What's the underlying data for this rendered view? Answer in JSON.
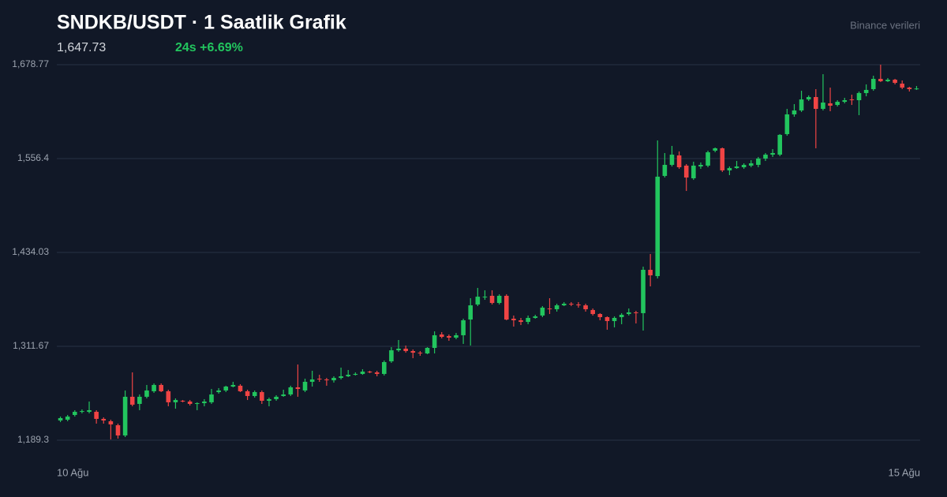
{
  "chart_data": {
    "type": "candlestick",
    "title": "SNDKB/USDT · 1 Saatlik Grafik",
    "last_price": "1,647.73",
    "change": "24s +6.69%",
    "source": "Binance verileri",
    "up_color": "#22c55e",
    "down_color": "#ef4444",
    "grid": true,
    "ylim": [
      1189.3,
      1678.77
    ],
    "yticks": [
      {
        "value": 1189.3,
        "label": "1,189.3"
      },
      {
        "value": 1311.67,
        "label": "1,311.67"
      },
      {
        "value": 1434.03,
        "label": "1,434.03"
      },
      {
        "value": 1556.4,
        "label": "1,556.4"
      },
      {
        "value": 1678.77,
        "label": "1,678.77"
      }
    ],
    "categories": [
      "10 Ağu",
      null,
      null,
      null,
      null,
      null,
      null,
      null,
      null,
      null,
      null,
      null,
      null,
      null,
      null,
      null,
      null,
      null,
      null,
      null,
      null,
      null,
      null,
      null,
      null,
      null,
      null,
      null,
      null,
      null,
      null,
      null,
      null,
      null,
      null,
      null,
      null,
      null,
      null,
      null,
      null,
      null,
      null,
      null,
      null,
      null,
      null,
      null,
      null,
      null,
      null,
      null,
      null,
      null,
      null,
      null,
      null,
      null,
      null,
      null,
      null,
      null,
      null,
      null,
      null,
      null,
      null,
      null,
      null,
      null,
      null,
      null,
      null,
      null,
      null,
      null,
      null,
      null,
      null,
      null,
      null,
      null,
      null,
      null,
      null,
      null,
      null,
      null,
      null,
      null,
      null,
      null,
      null,
      null,
      null,
      null,
      null,
      null,
      null,
      null,
      null,
      null,
      null,
      null,
      null,
      null,
      null,
      null,
      null,
      null,
      null,
      null,
      null,
      null,
      null,
      null,
      null,
      null,
      null,
      "15 Ağu"
    ],
    "open": [
      1215.0,
      1216.0,
      1222.2,
      1226.3,
      1226.3,
      1226.3,
      1217.1,
      1214.0,
      1208.8,
      1195.5,
      1245.9,
      1236.6,
      1245.9,
      1253.1,
      1261.3,
      1253.1,
      1238.7,
      1240.7,
      1239.7,
      1236.6,
      1237.6,
      1238.7,
      1252.0,
      1254.1,
      1259.2,
      1260.3,
      1253.1,
      1246.9,
      1252.0,
      1240.7,
      1242.8,
      1246.9,
      1248.9,
      1258.2,
      1254.1,
      1265.4,
      1269.5,
      1268.5,
      1267.4,
      1270.5,
      1272.6,
      1274.6,
      1275.7,
      1278.7,
      1277.7,
      1275.7,
      1292.1,
      1306.5,
      1308.6,
      1305.5,
      1303.4,
      1302.4,
      1309.6,
      1327.1,
      1325.0,
      1323.0,
      1326.1,
      1346.6,
      1366.2,
      1375.4,
      1377.5,
      1368.2,
      1377.5,
      1347.7,
      1345.6,
      1343.5,
      1348.7,
      1351.8,
      1361.0,
      1360.0,
      1365.1,
      1367.2,
      1366.2,
      1365.1,
      1359.0,
      1353.8,
      1349.7,
      1344.6,
      1349.7,
      1353.8,
      1355.9,
      1354.9,
      1411.4,
      1403.2,
      1533.8,
      1548.2,
      1560.5,
      1547.2,
      1530.7,
      1546.1,
      1547.2,
      1566.7,
      1569.8,
      1541.0,
      1544.0,
      1545.1,
      1547.2,
      1548.2,
      1556.4,
      1561.5,
      1561.5,
      1588.3,
      1614.0,
      1619.1,
      1633.5,
      1636.6,
      1621.2,
      1628.4,
      1626.3,
      1630.4,
      1633.5,
      1632.5,
      1641.8,
      1646.9,
      1660.3,
      1657.2,
      1659.2,
      1654.1,
      1648.9,
      1646.9
    ],
    "high": [
      1220.1,
      1222.2,
      1228.4,
      1229.4,
      1239.7,
      1228.4,
      1219.1,
      1216.0,
      1210.9,
      1254.1,
      1277.7,
      1248.9,
      1261.3,
      1263.3,
      1263.3,
      1255.1,
      1243.8,
      1241.7,
      1241.7,
      1238.7,
      1242.8,
      1256.1,
      1257.2,
      1260.3,
      1265.4,
      1262.3,
      1255.1,
      1254.1,
      1254.1,
      1244.8,
      1247.9,
      1255.1,
      1260.3,
      1288.0,
      1269.5,
      1279.8,
      1274.6,
      1270.5,
      1272.6,
      1283.9,
      1280.8,
      1277.7,
      1281.8,
      1279.8,
      1279.8,
      1293.2,
      1310.6,
      1319.9,
      1312.7,
      1307.6,
      1305.5,
      1310.6,
      1331.2,
      1330.2,
      1327.1,
      1329.1,
      1347.7,
      1374.4,
      1387.8,
      1384.7,
      1384.7,
      1379.5,
      1379.5,
      1351.8,
      1348.7,
      1351.8,
      1352.8,
      1364.1,
      1374.4,
      1367.2,
      1369.3,
      1369.3,
      1369.3,
      1367.2,
      1361.0,
      1354.9,
      1350.7,
      1350.7,
      1354.9,
      1361.0,
      1357.9,
      1415.5,
      1432.0,
      1580.1,
      1563.6,
      1572.9,
      1565.7,
      1549.2,
      1552.3,
      1551.3,
      1566.7,
      1570.8,
      1570.8,
      1546.1,
      1553.3,
      1550.2,
      1554.3,
      1558.5,
      1563.6,
      1568.7,
      1588.3,
      1621.2,
      1627.4,
      1644.8,
      1638.7,
      1646.9,
      1666.4,
      1648.9,
      1632.5,
      1635.6,
      1639.7,
      1643.8,
      1653.1,
      1664.4,
      1678.8,
      1661.3,
      1660.3,
      1658.2,
      1650.0,
      1651.0
    ],
    "low": [
      1212.9,
      1214.0,
      1220.1,
      1224.3,
      1224.3,
      1210.9,
      1210.9,
      1190.3,
      1191.4,
      1193.4,
      1233.5,
      1228.4,
      1243.8,
      1251.0,
      1252.0,
      1233.5,
      1230.4,
      1238.7,
      1234.5,
      1228.4,
      1233.5,
      1236.6,
      1250.0,
      1252.0,
      1258.2,
      1252.0,
      1241.7,
      1244.8,
      1236.6,
      1233.5,
      1240.7,
      1245.9,
      1246.9,
      1245.9,
      1252.0,
      1259.2,
      1265.4,
      1260.3,
      1264.4,
      1268.5,
      1271.6,
      1273.6,
      1274.6,
      1276.7,
      1272.6,
      1273.6,
      1290.1,
      1304.5,
      1303.4,
      1296.2,
      1299.3,
      1301.4,
      1302.4,
      1322.0,
      1318.9,
      1320.9,
      1314.8,
      1312.7,
      1364.1,
      1372.3,
      1366.2,
      1366.2,
      1345.6,
      1337.4,
      1339.4,
      1340.5,
      1347.7,
      1349.7,
      1353.8,
      1356.9,
      1364.1,
      1364.1,
      1362.1,
      1356.9,
      1351.8,
      1345.6,
      1333.3,
      1336.4,
      1340.5,
      1351.8,
      1341.5,
      1332.2,
      1389.8,
      1400.1,
      1531.7,
      1546.1,
      1543.0,
      1514.2,
      1528.6,
      1543.0,
      1545.1,
      1564.6,
      1538.9,
      1534.8,
      1543.0,
      1543.0,
      1545.1,
      1545.1,
      1553.3,
      1558.5,
      1559.5,
      1586.2,
      1610.9,
      1617.1,
      1631.5,
      1569.8,
      1619.1,
      1618.1,
      1624.3,
      1628.4,
      1626.3,
      1613.0,
      1637.6,
      1644.8,
      1656.2,
      1656.2,
      1653.1,
      1646.9,
      1643.8,
      1645.9
    ],
    "close": [
      1218.1,
      1220.1,
      1226.3,
      1227.3,
      1228.4,
      1217.1,
      1215.0,
      1209.9,
      1195.5,
      1245.9,
      1235.6,
      1245.9,
      1254.1,
      1261.3,
      1253.1,
      1238.7,
      1241.7,
      1239.7,
      1236.6,
      1237.6,
      1239.7,
      1248.9,
      1254.1,
      1259.2,
      1261.3,
      1253.1,
      1246.9,
      1252.0,
      1240.7,
      1242.8,
      1245.9,
      1248.9,
      1258.2,
      1256.1,
      1265.4,
      1268.5,
      1268.5,
      1267.4,
      1270.5,
      1272.6,
      1274.6,
      1275.7,
      1278.7,
      1277.7,
      1275.7,
      1291.1,
      1306.5,
      1308.6,
      1305.5,
      1303.4,
      1302.4,
      1309.6,
      1326.1,
      1324.0,
      1323.0,
      1326.1,
      1345.6,
      1365.1,
      1376.4,
      1376.4,
      1368.2,
      1377.5,
      1346.6,
      1345.6,
      1343.5,
      1348.7,
      1350.7,
      1362.1,
      1360.0,
      1365.1,
      1367.2,
      1366.2,
      1365.1,
      1360.0,
      1353.8,
      1349.7,
      1344.6,
      1348.7,
      1352.8,
      1355.9,
      1354.9,
      1411.4,
      1404.2,
      1532.8,
      1548.2,
      1561.5,
      1545.1,
      1531.7,
      1547.2,
      1548.2,
      1564.6,
      1569.8,
      1541.0,
      1544.0,
      1546.1,
      1548.2,
      1550.2,
      1556.4,
      1561.5,
      1563.6,
      1587.3,
      1614.0,
      1619.1,
      1633.5,
      1636.6,
      1621.2,
      1629.4,
      1625.3,
      1630.4,
      1632.5,
      1632.5,
      1641.8,
      1645.9,
      1660.3,
      1657.2,
      1659.2,
      1655.1,
      1648.9,
      1646.9,
      1647.73
    ]
  }
}
